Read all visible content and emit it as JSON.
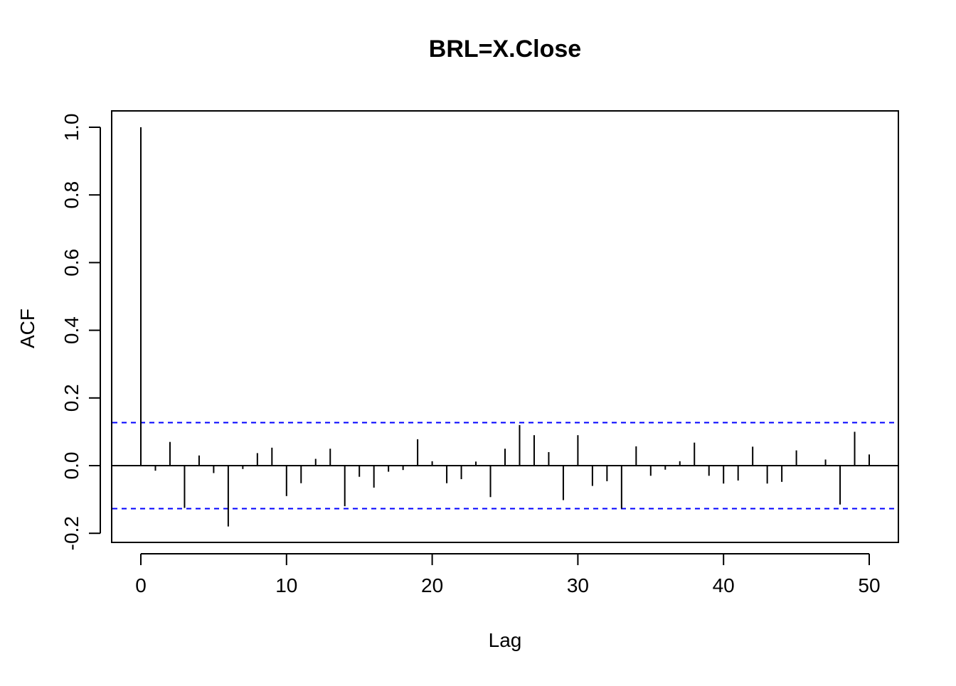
{
  "chart_data": {
    "type": "bar",
    "title": "BRL=X.Close",
    "xlabel": "Lag",
    "ylabel": "ACF",
    "xlim": [
      0,
      50
    ],
    "ylim": [
      -0.2,
      1.0
    ],
    "x_ticks": [
      0,
      10,
      20,
      30,
      40,
      50
    ],
    "y_ticks": [
      "-0.2",
      "0.0",
      "0.2",
      "0.4",
      "0.6",
      "0.8",
      "1.0"
    ],
    "confidence_bound": 0.127,
    "confidence_color": "#0000ff",
    "grid": false,
    "series": [
      {
        "x": [
          0,
          1,
          2,
          3,
          4,
          5,
          6,
          7,
          8,
          9,
          10,
          11,
          12,
          13,
          14,
          15,
          16,
          17,
          18,
          19,
          20,
          21,
          22,
          23,
          24,
          25,
          26,
          27,
          28,
          29,
          30,
          31,
          32,
          33,
          34,
          35,
          36,
          37,
          38,
          39,
          40,
          41,
          42,
          43,
          44,
          45,
          46,
          47,
          48,
          49,
          50
        ],
        "values": [
          1.0,
          -0.015,
          0.07,
          -0.125,
          0.03,
          -0.022,
          -0.18,
          -0.01,
          0.037,
          0.053,
          -0.09,
          -0.052,
          0.02,
          0.05,
          -0.12,
          -0.033,
          -0.065,
          -0.018,
          -0.013,
          0.078,
          0.013,
          -0.052,
          -0.04,
          0.012,
          -0.093,
          0.05,
          0.12,
          0.09,
          0.04,
          -0.102,
          0.09,
          -0.06,
          -0.046,
          -0.127,
          0.057,
          -0.03,
          -0.012,
          0.013,
          0.068,
          -0.03,
          -0.053,
          -0.044,
          0.056,
          -0.053,
          -0.048,
          0.045,
          0.0,
          0.018,
          -0.115,
          0.1,
          0.033
        ]
      }
    ]
  }
}
